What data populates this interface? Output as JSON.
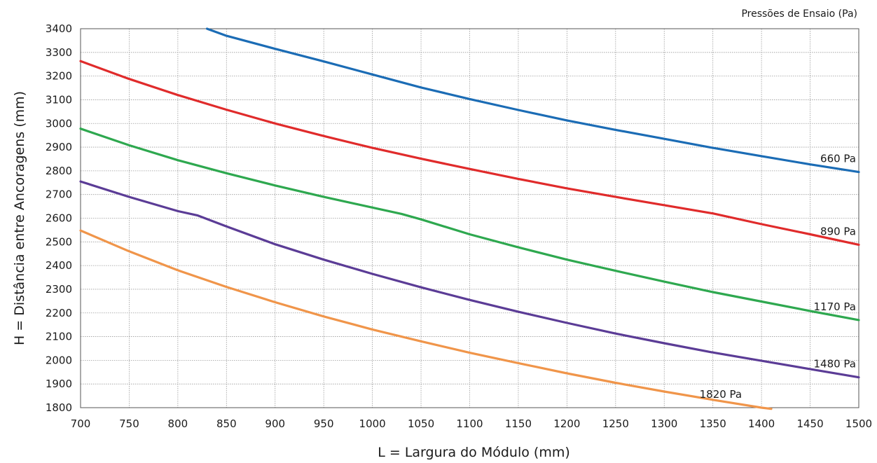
{
  "chart_data": {
    "type": "line",
    "legend_title": "Pressões de Ensaio  (Pa)",
    "xlabel": "L = Largura do Módulo (mm)",
    "ylabel": "H = Distância entre Ancoragens (mm)",
    "xlim": [
      700,
      1500
    ],
    "ylim": [
      1800,
      3400
    ],
    "x_ticks": [
      700,
      750,
      800,
      850,
      900,
      950,
      1000,
      1050,
      1100,
      1150,
      1200,
      1250,
      1300,
      1350,
      1400,
      1450,
      1500
    ],
    "y_ticks": [
      1800,
      1900,
      2000,
      2100,
      2200,
      2300,
      2400,
      2500,
      2600,
      2700,
      2800,
      2900,
      3000,
      3100,
      3200,
      3300,
      3400
    ],
    "grid": true,
    "legend_placement": "inline-right",
    "series": [
      {
        "name": "660 Pa",
        "color": "#1b6cb5",
        "x": [
          830,
          850,
          900,
          950,
          1000,
          1050,
          1100,
          1150,
          1200,
          1250,
          1300,
          1350,
          1400,
          1450,
          1500
        ],
        "y": [
          3400,
          3370,
          3315,
          3262,
          3207,
          3152,
          3103,
          3057,
          3013,
          2973,
          2935,
          2897,
          2862,
          2827,
          2795
        ]
      },
      {
        "name": "890 Pa",
        "color": "#e02b2b",
        "x": [
          700,
          750,
          800,
          850,
          900,
          950,
          1000,
          1050,
          1100,
          1150,
          1200,
          1250,
          1300,
          1350,
          1400,
          1450,
          1500
        ],
        "y": [
          3263,
          3188,
          3120,
          3058,
          3000,
          2947,
          2897,
          2851,
          2808,
          2766,
          2726,
          2690,
          2655,
          2620,
          2575,
          2532,
          2488
        ]
      },
      {
        "name": "1170 Pa",
        "color": "#2ea84f",
        "x": [
          700,
          750,
          800,
          850,
          900,
          950,
          1000,
          1030,
          1050,
          1100,
          1150,
          1200,
          1250,
          1300,
          1350,
          1400,
          1450,
          1500
        ],
        "y": [
          2978,
          2908,
          2845,
          2790,
          2738,
          2690,
          2645,
          2618,
          2595,
          2532,
          2477,
          2425,
          2378,
          2332,
          2288,
          2248,
          2208,
          2170
        ]
      },
      {
        "name": "1480 Pa",
        "color": "#5b3c96",
        "x": [
          700,
          750,
          800,
          820,
          850,
          900,
          950,
          1000,
          1050,
          1100,
          1150,
          1200,
          1250,
          1300,
          1350,
          1400,
          1450,
          1500
        ],
        "y": [
          2755,
          2690,
          2630,
          2612,
          2565,
          2490,
          2425,
          2365,
          2308,
          2255,
          2205,
          2158,
          2113,
          2072,
          2033,
          1998,
          1963,
          1928
        ]
      },
      {
        "name": "1820 Pa",
        "color": "#f0954a",
        "x": [
          700,
          750,
          800,
          850,
          900,
          950,
          1000,
          1050,
          1100,
          1150,
          1200,
          1250,
          1300,
          1350,
          1400,
          1410
        ],
        "y": [
          2548,
          2460,
          2380,
          2310,
          2245,
          2185,
          2130,
          2080,
          2032,
          1988,
          1945,
          1905,
          1868,
          1833,
          1800,
          1795
        ]
      }
    ]
  }
}
